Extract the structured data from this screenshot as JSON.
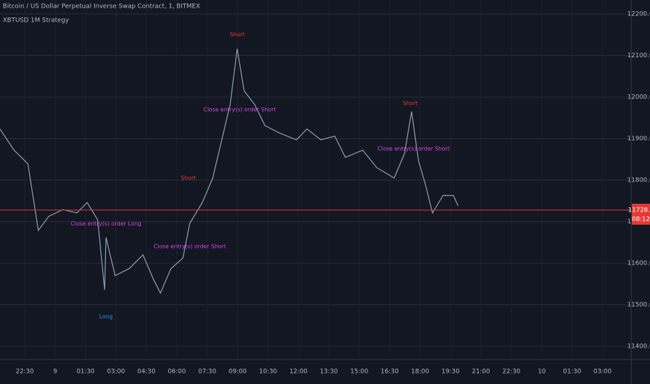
{
  "chart_data": {
    "type": "line",
    "title": "Bitcoin / US Dollar Perpetual Inverse Swap Contract, 1, BITMEX",
    "subtitle": "XBTUSD 1M Strategy",
    "color": "#8fa3b8",
    "x": [
      -2.72,
      -2.03,
      -1.34,
      -0.83,
      -0.31,
      0.38,
      1.07,
      1.58,
      2.1,
      2.44,
      2.51,
      2.96,
      3.65,
      4.33,
      4.85,
      5.19,
      5.71,
      6.3,
      6.64,
      7.26,
      7.77,
      8.22,
      8.63,
      8.98,
      9.32,
      9.84,
      10.35,
      11.04,
      11.9,
      12.42,
      13.11,
      13.79,
      14.31,
      15.17,
      15.86,
      16.72,
      17.23,
      17.58,
      17.92,
      18.27,
      18.61,
      19.13,
      19.64,
      19.88
    ],
    "values": [
      11923,
      11872,
      11839,
      11679,
      11713,
      11729,
      11721,
      11746,
      11704,
      11536,
      11662,
      11570,
      11587,
      11620,
      11561,
      11528,
      11587,
      11612,
      11696,
      11746,
      11805,
      11897,
      11982,
      12116,
      12015,
      11982,
      11931,
      11914,
      11897,
      11923,
      11897,
      11906,
      11855,
      11872,
      11830,
      11805,
      11864,
      11965,
      11847,
      11788,
      11721,
      11763,
      11763,
      11738
    ],
    "xlim": [
      -2.72,
      28.41
    ],
    "xticks": [
      {
        "value": -1.5,
        "label": "22:30"
      },
      {
        "value": 0,
        "label": "9"
      },
      {
        "value": 1.5,
        "label": "01:30"
      },
      {
        "value": 3,
        "label": "03:00"
      },
      {
        "value": 4.5,
        "label": "04:30"
      },
      {
        "value": 6,
        "label": "06:00"
      },
      {
        "value": 7.5,
        "label": "07:30"
      },
      {
        "value": 9,
        "label": "09:00"
      },
      {
        "value": 10.5,
        "label": "10:30"
      },
      {
        "value": 12,
        "label": "12:00"
      },
      {
        "value": 13.5,
        "label": "13:30"
      },
      {
        "value": 15,
        "label": "15:00"
      },
      {
        "value": 16.5,
        "label": "16:30"
      },
      {
        "value": 18,
        "label": "18:00"
      },
      {
        "value": 19.5,
        "label": "19:30"
      },
      {
        "value": 21,
        "label": "21:00"
      },
      {
        "value": 22.5,
        "label": "22:30"
      },
      {
        "value": 24,
        "label": "10"
      },
      {
        "value": 25.5,
        "label": "01:30"
      },
      {
        "value": 27,
        "label": "03:00"
      }
    ],
    "ylim": [
      11368,
      12233.6
    ],
    "yticks": [
      {
        "value": 11400,
        "label": "11400.0"
      },
      {
        "value": 11500,
        "label": "11500.0"
      },
      {
        "value": 11600,
        "label": "11600.0"
      },
      {
        "value": 11700,
        "label": "11700.0"
      },
      {
        "value": 11800,
        "label": "11800.0"
      },
      {
        "value": 11900,
        "label": "11900.0"
      },
      {
        "value": 12000,
        "label": "12000.0"
      },
      {
        "value": 12100,
        "label": "12100.0"
      },
      {
        "value": 12200,
        "label": "12200.0"
      }
    ],
    "grid": true,
    "price_line": {
      "value": 11728,
      "label": "11728.0",
      "color": "#e53935"
    },
    "countdown": "08:12",
    "annotations": [
      {
        "text": "Short",
        "x": 8.98,
        "y": 12150,
        "color": "#e53935"
      },
      {
        "text": "Close entry(s) order Short",
        "x": 9.1,
        "y": 11970,
        "color": "#d546e6"
      },
      {
        "text": "Close entry(s) order Long",
        "x": 2.51,
        "y": 11695,
        "color": "#d546e6"
      },
      {
        "text": "Long",
        "x": 2.51,
        "y": 11471,
        "color": "#2196f3"
      },
      {
        "text": "Short",
        "x": 6.57,
        "y": 11805,
        "color": "#e53935"
      },
      {
        "text": "Close entry(s) order Short",
        "x": 6.64,
        "y": 11640,
        "color": "#d546e6"
      },
      {
        "text": "Short",
        "x": 17.51,
        "y": 11985,
        "color": "#e53935"
      },
      {
        "text": "Close entry(s) order Short",
        "x": 17.68,
        "y": 11876,
        "color": "#d546e6"
      }
    ]
  }
}
